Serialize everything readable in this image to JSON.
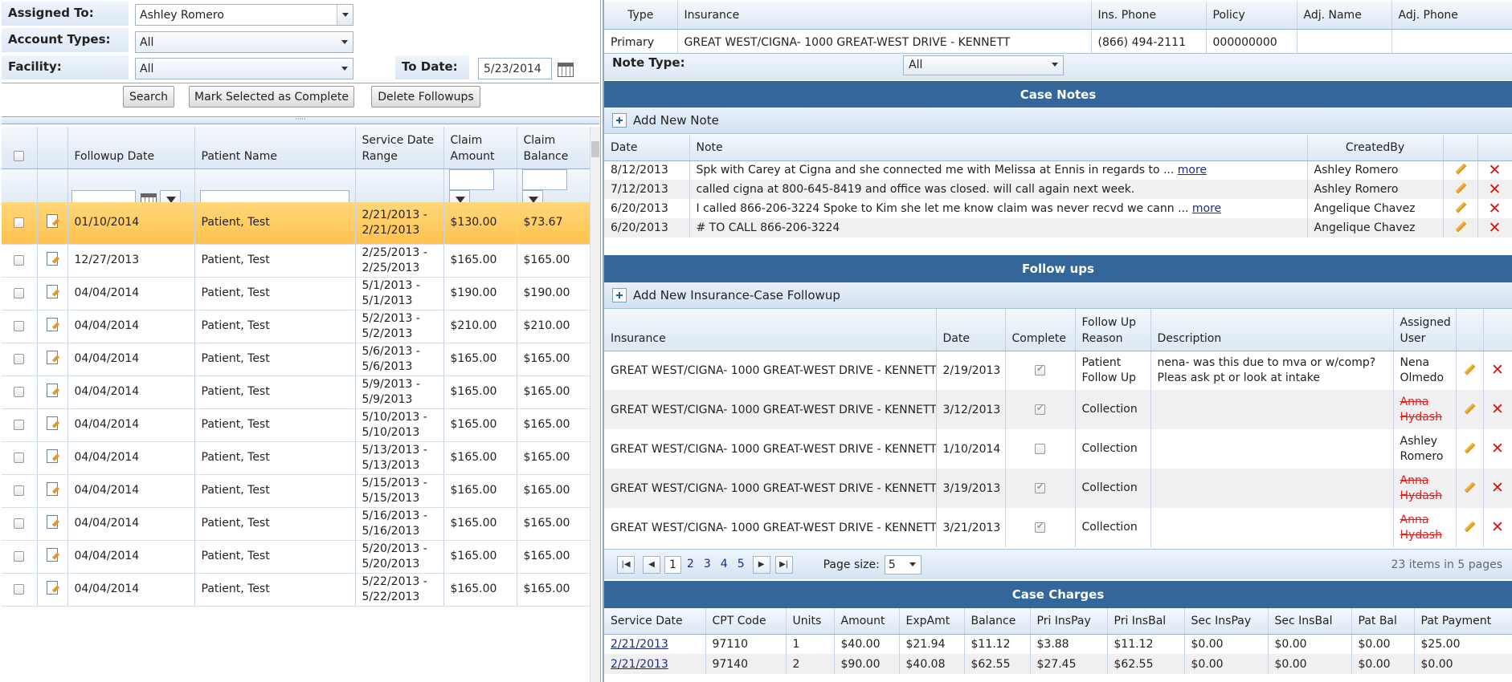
{
  "filters": {
    "assigned_to_label": "Assigned To:",
    "assigned_to_value": "Ashley Romero",
    "account_types_label": "Account Types:",
    "account_types_value": "All",
    "facility_label": "Facility:",
    "facility_value": "All",
    "to_date_label": "To Date:",
    "to_date_value": "5/23/2014"
  },
  "actions": {
    "search": "Search",
    "mark_complete": "Mark Selected as Complete",
    "delete_followups": "Delete Followups"
  },
  "followups_grid": {
    "columns": [
      "Followup Date",
      "Patient Name",
      "Service Date Range",
      "Claim Amount",
      "Claim Balance"
    ],
    "rows": [
      {
        "date": "01/10/2014",
        "patient": "Patient, Test",
        "range": "2/21/2013 - 2/21/2013",
        "amount": "$130.00",
        "balance": "$73.67"
      },
      {
        "date": "12/27/2013",
        "patient": "Patient, Test",
        "range": "2/25/2013 - 2/25/2013",
        "amount": "$165.00",
        "balance": "$165.00"
      },
      {
        "date": "04/04/2014",
        "patient": "Patient, Test",
        "range": "5/1/2013 - 5/1/2013",
        "amount": "$190.00",
        "balance": "$190.00"
      },
      {
        "date": "04/04/2014",
        "patient": "Patient, Test",
        "range": "5/2/2013 - 5/2/2013",
        "amount": "$210.00",
        "balance": "$210.00"
      },
      {
        "date": "04/04/2014",
        "patient": "Patient, Test",
        "range": "5/6/2013 - 5/6/2013",
        "amount": "$165.00",
        "balance": "$165.00"
      },
      {
        "date": "04/04/2014",
        "patient": "Patient, Test",
        "range": "5/9/2013 - 5/9/2013",
        "amount": "$165.00",
        "balance": "$165.00"
      },
      {
        "date": "04/04/2014",
        "patient": "Patient, Test",
        "range": "5/10/2013 - 5/10/2013",
        "amount": "$165.00",
        "balance": "$165.00"
      },
      {
        "date": "04/04/2014",
        "patient": "Patient, Test",
        "range": "5/13/2013 - 5/13/2013",
        "amount": "$165.00",
        "balance": "$165.00"
      },
      {
        "date": "04/04/2014",
        "patient": "Patient, Test",
        "range": "5/15/2013 - 5/15/2013",
        "amount": "$165.00",
        "balance": "$165.00"
      },
      {
        "date": "04/04/2014",
        "patient": "Patient, Test",
        "range": "5/16/2013 - 5/16/2013",
        "amount": "$165.00",
        "balance": "$165.00"
      },
      {
        "date": "04/04/2014",
        "patient": "Patient, Test",
        "range": "5/20/2013 - 5/20/2013",
        "amount": "$165.00",
        "balance": "$165.00"
      },
      {
        "date": "04/04/2014",
        "patient": "Patient, Test",
        "range": "5/22/2013 - 5/22/2013",
        "amount": "$165.00",
        "balance": "$165.00"
      }
    ]
  },
  "insurance": {
    "columns": [
      "Type",
      "Insurance",
      "Ins. Phone",
      "Policy",
      "Adj. Name",
      "Adj. Phone"
    ],
    "row": {
      "type": "Primary",
      "insurance": "GREAT WEST/CIGNA- 1000 GREAT-WEST DRIVE - KENNETT",
      "phone": "(866) 494-2111",
      "policy": "000000000",
      "adj_name": "",
      "adj_phone": ""
    }
  },
  "note_type": {
    "label": "Note Type:",
    "value": "All"
  },
  "case_notes": {
    "title": "Case Notes",
    "add_label": "Add New Note",
    "columns": [
      "Date",
      "Note",
      "CreatedBy"
    ],
    "more": "more",
    "rows": [
      {
        "date": "8/12/2013",
        "note": "Spk with Carey at Cigna and she connected me with Melissa at Ennis in regards to ...",
        "more": true,
        "by": "Ashley Romero"
      },
      {
        "date": "7/12/2013",
        "note": "called cigna at 800-645-8419 and office was closed. will call again next week.",
        "more": false,
        "by": "Ashley Romero"
      },
      {
        "date": "6/20/2013",
        "note": "I called 866-206-3224 Spoke to Kim she let me know claim was never recvd we cann ...",
        "more": true,
        "by": "Angelique Chavez"
      },
      {
        "date": "6/20/2013",
        "note": "# TO CALL 866-206-3224",
        "more": false,
        "by": "Angelique Chavez"
      }
    ]
  },
  "follow_ups": {
    "title": "Follow ups",
    "add_label": "Add New Insurance-Case Followup",
    "columns": [
      "Insurance",
      "Date",
      "Complete",
      "Follow Up Reason",
      "Description",
      "Assigned User"
    ],
    "rows": [
      {
        "insurance": "GREAT WEST/CIGNA- 1000 GREAT-WEST DRIVE - KENNETT",
        "date": "2/19/2013",
        "complete": true,
        "reason": "Patient Follow Up",
        "desc": "nena- was this due to mva or w/comp? Pleas ask pt or look at intake",
        "user": "Nena Olmedo",
        "struck": false
      },
      {
        "insurance": "GREAT WEST/CIGNA- 1000 GREAT-WEST DRIVE - KENNETT",
        "date": "3/12/2013",
        "complete": true,
        "reason": "Collection",
        "desc": "",
        "user": "Anna Hydash",
        "struck": true
      },
      {
        "insurance": "GREAT WEST/CIGNA- 1000 GREAT-WEST DRIVE - KENNETT",
        "date": "1/10/2014",
        "complete": false,
        "reason": "Collection",
        "desc": "",
        "user": "Ashley Romero",
        "struck": false
      },
      {
        "insurance": "GREAT WEST/CIGNA- 1000 GREAT-WEST DRIVE - KENNETT",
        "date": "3/19/2013",
        "complete": true,
        "reason": "Collection",
        "desc": "",
        "user": "Anna Hydash",
        "struck": true
      },
      {
        "insurance": "GREAT WEST/CIGNA- 1000 GREAT-WEST DRIVE - KENNETT",
        "date": "3/21/2013",
        "complete": true,
        "reason": "Collection",
        "desc": "",
        "user": "Anna Hydash",
        "struck": true
      }
    ],
    "pager": {
      "pages": [
        "1",
        "2",
        "3",
        "4",
        "5"
      ],
      "current": "1",
      "page_size_label": "Page size:",
      "page_size": "5",
      "summary": "23 items in 5 pages"
    }
  },
  "case_charges": {
    "title": "Case Charges",
    "columns": [
      "Service Date",
      "CPT Code",
      "Units",
      "Amount",
      "ExpAmt",
      "Balance",
      "Pri InsPay",
      "Pri InsBal",
      "Sec InsPay",
      "Sec InsBal",
      "Pat Bal",
      "Pat Payment"
    ],
    "rows": [
      [
        "2/21/2013",
        "97110",
        "1",
        "$40.00",
        "$21.94",
        "$11.12",
        "$3.88",
        "$11.12",
        "$0.00",
        "$0.00",
        "$0.00",
        "$25.00"
      ],
      [
        "2/21/2013",
        "97140",
        "2",
        "$90.00",
        "$40.08",
        "$62.55",
        "$27.45",
        "$62.55",
        "$0.00",
        "$0.00",
        "$0.00",
        "$0.00"
      ]
    ]
  }
}
